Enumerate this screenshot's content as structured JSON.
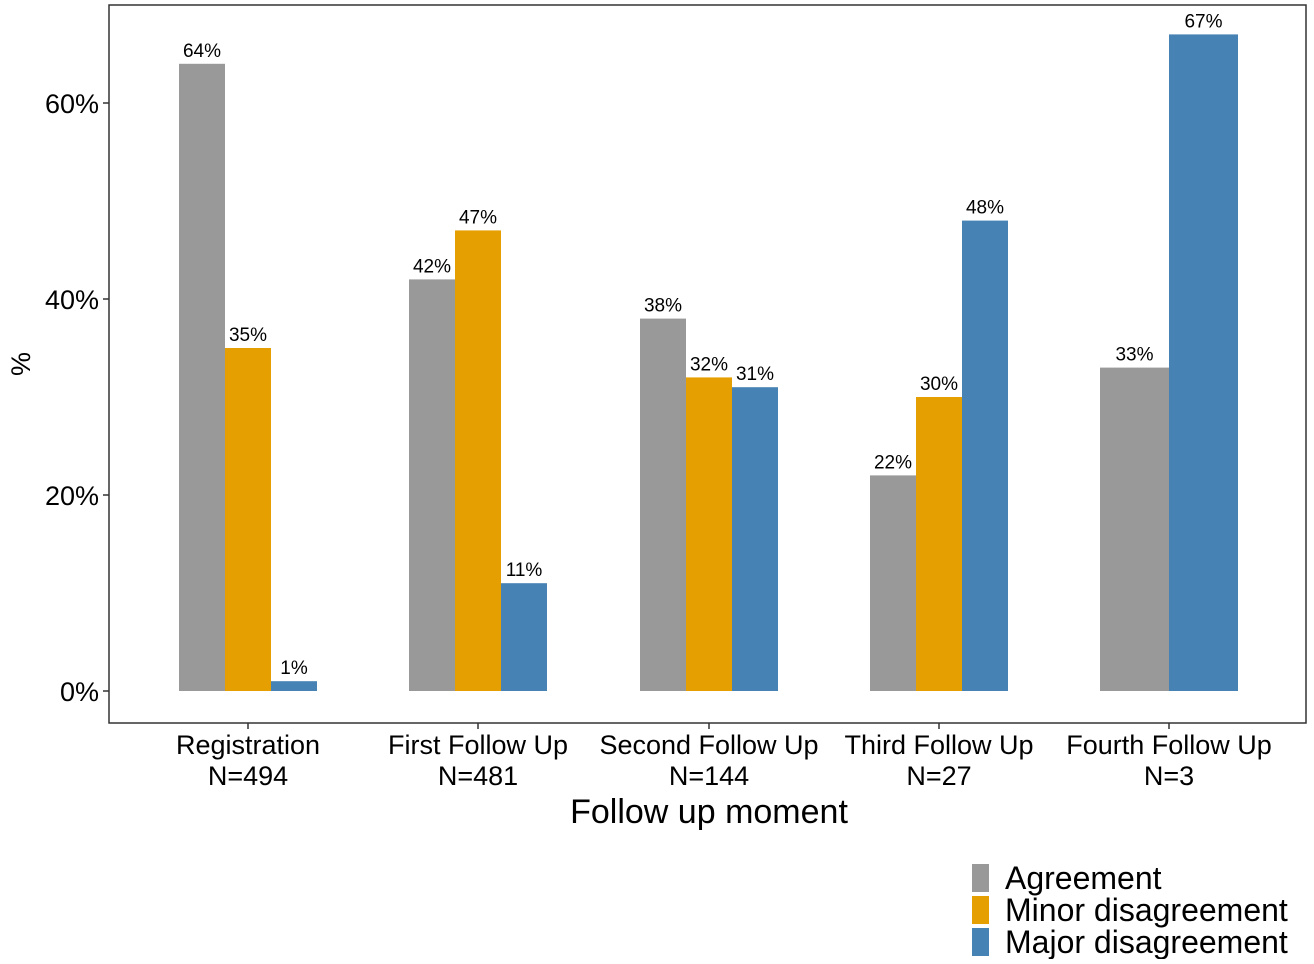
{
  "chart_data": {
    "type": "bar",
    "title": "",
    "xlabel": "Follow up moment",
    "ylabel": "%",
    "ylim": [
      0,
      70
    ],
    "yticks": [
      0,
      20,
      40,
      60
    ],
    "ytick_labels": [
      "0%",
      "20%",
      "40%",
      "60%"
    ],
    "grid": false,
    "legend_position": "bottom-right",
    "categories": [
      {
        "name": "Registration",
        "n_label": "N=494"
      },
      {
        "name": "First Follow Up",
        "n_label": "N=481"
      },
      {
        "name": "Second Follow Up",
        "n_label": "N=144"
      },
      {
        "name": "Third Follow Up",
        "n_label": "N=27"
      },
      {
        "name": "Fourth Follow Up",
        "n_label": "N=3"
      }
    ],
    "series": [
      {
        "name": "Agreement",
        "color": "#999999",
        "values": [
          64,
          42,
          38,
          22,
          33
        ],
        "labels": [
          "64%",
          "42%",
          "38%",
          "22%",
          "33%"
        ]
      },
      {
        "name": "Minor disagreement",
        "color": "#E69F00",
        "values": [
          35,
          47,
          32,
          30,
          null
        ],
        "labels": [
          "35%",
          "47%",
          "32%",
          "30%",
          null
        ]
      },
      {
        "name": "Major disagreement",
        "color": "#4682B4",
        "values": [
          1,
          11,
          31,
          48,
          67
        ],
        "labels": [
          "1%",
          "11%",
          "31%",
          "48%",
          "67%"
        ]
      }
    ]
  }
}
